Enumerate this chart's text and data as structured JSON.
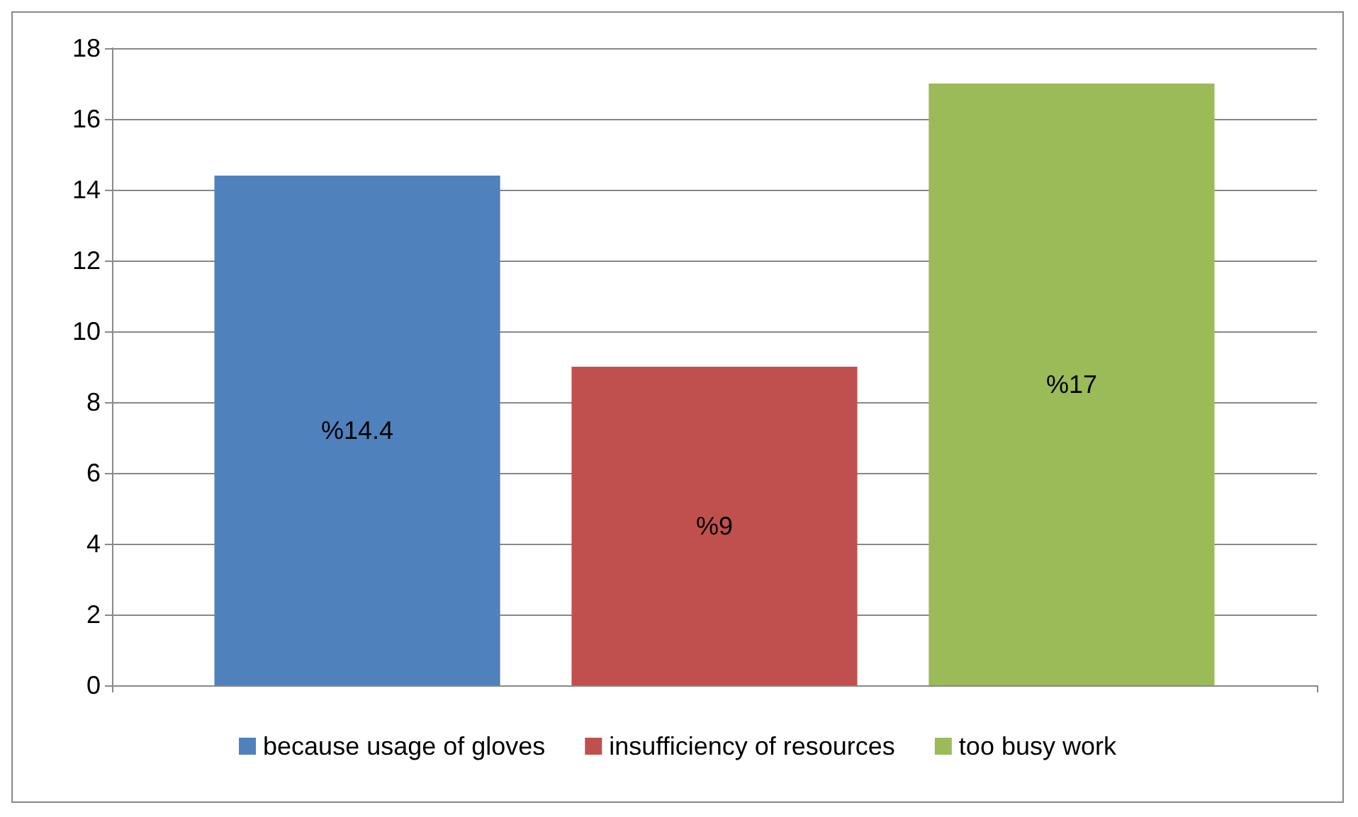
{
  "chart_data": {
    "type": "bar",
    "categories": [
      null
    ],
    "series": [
      {
        "name": "because usage of gloves",
        "color": "#4f81bd",
        "values": [
          14.4
        ],
        "value_labels": [
          "%14.4"
        ]
      },
      {
        "name": "insufficiency of resources",
        "color": "#c0504d",
        "values": [
          9
        ],
        "value_labels": [
          "%9"
        ]
      },
      {
        "name": "too busy work",
        "color": "#9bbb59",
        "values": [
          17
        ],
        "value_labels": [
          "%17"
        ]
      }
    ],
    "ylim": [
      0,
      18
    ],
    "yticks": [
      0,
      2,
      4,
      6,
      8,
      10,
      12,
      14,
      16,
      18
    ],
    "grid": "y",
    "legend": "bottom"
  }
}
